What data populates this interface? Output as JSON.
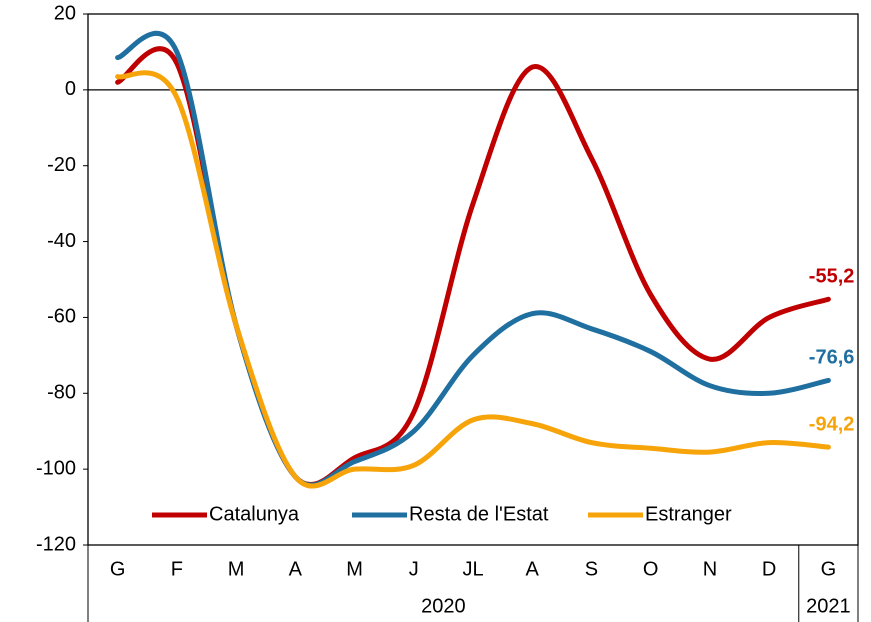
{
  "chart_data": {
    "type": "line",
    "categories": [
      "G",
      "F",
      "M",
      "A",
      "M",
      "J",
      "JL",
      "A",
      "S",
      "O",
      "N",
      "D",
      "G"
    ],
    "category_years": [
      "2020",
      "2020",
      "2020",
      "2020",
      "2020",
      "2020",
      "2020",
      "2020",
      "2020",
      "2020",
      "2020",
      "2020",
      "2021"
    ],
    "series": [
      {
        "name": "Catalunya",
        "color": "#c00000",
        "values": [
          2,
          7,
          -62,
          -102,
          -97,
          -85,
          -30,
          6,
          -18,
          -54,
          -71,
          -60,
          -55.2
        ],
        "value_labels": [
          null,
          null,
          null,
          null,
          null,
          null,
          null,
          null,
          null,
          null,
          null,
          null,
          "-55,2"
        ]
      },
      {
        "name": "Resta de l'Estat",
        "color": "#1f6fa0",
        "values": [
          8.5,
          10,
          -62,
          -102,
          -98,
          -90,
          -70,
          -59,
          -63,
          -69,
          -78,
          -80,
          -76.6
        ],
        "value_labels": [
          null,
          null,
          null,
          null,
          null,
          null,
          null,
          null,
          null,
          null,
          null,
          null,
          "-76,6"
        ]
      },
      {
        "name": "Estranger",
        "color": "#f7a30a",
        "values": [
          3.5,
          -2,
          -62,
          -102,
          -100,
          -99,
          -87,
          -88,
          -93,
          -94.5,
          -95.5,
          -93,
          -94.2
        ],
        "value_labels": [
          null,
          null,
          null,
          null,
          null,
          null,
          null,
          null,
          null,
          null,
          null,
          null,
          "-94,2"
        ]
      }
    ],
    "ylim": [
      -120,
      20
    ],
    "yticks": [
      -120,
      -100,
      -80,
      -60,
      -40,
      -20,
      0,
      20
    ],
    "zero_line": true,
    "legend": "bottom"
  }
}
